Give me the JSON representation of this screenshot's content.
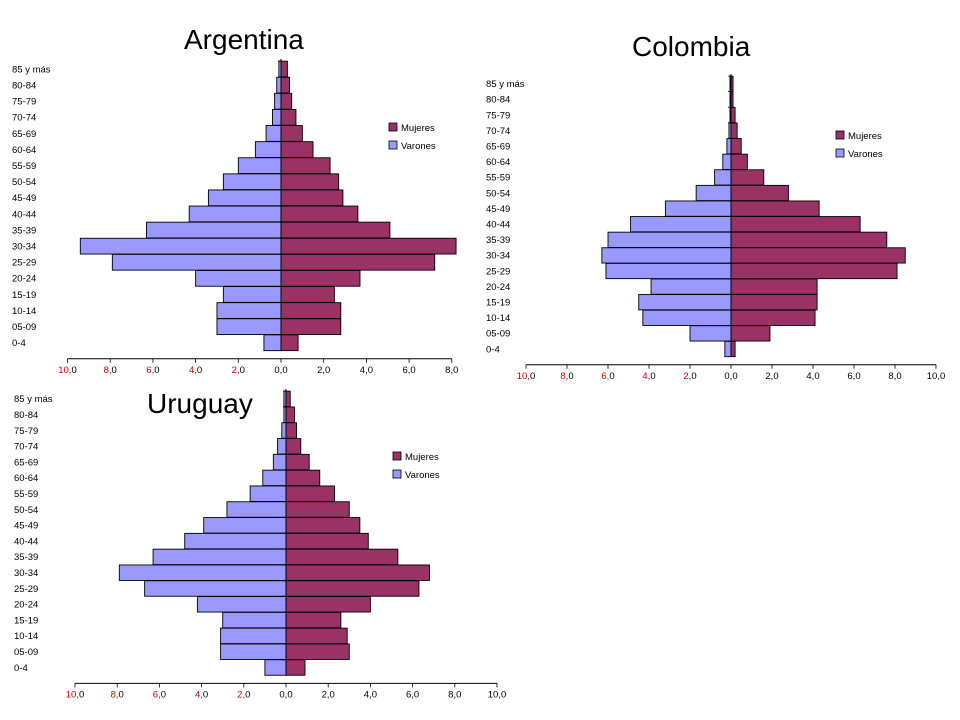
{
  "chart_data": [
    {
      "type": "bar",
      "orientation": "horizontal-pyramid",
      "title": "Argentina",
      "categories": [
        "0-4",
        "05-09",
        "10-14",
        "15-19",
        "20-24",
        "25-29",
        "30-34",
        "35-39",
        "40-44",
        "45-49",
        "50-54",
        "55-59",
        "60-64",
        "65-69",
        "70-74",
        "75-79",
        "80-84",
        "85 y más"
      ],
      "series": [
        {
          "name": "Mujeres",
          "color": "#993366",
          "side": "right",
          "values": [
            0.8,
            2.8,
            2.8,
            2.5,
            3.7,
            7.2,
            8.2,
            5.1,
            3.6,
            2.9,
            2.7,
            2.3,
            1.5,
            1.0,
            0.7,
            0.5,
            0.4,
            0.3
          ]
        },
        {
          "name": "Varones",
          "color": "#9999ff",
          "side": "left",
          "values": [
            0.8,
            3.0,
            3.0,
            2.7,
            4.0,
            7.9,
            9.4,
            6.3,
            4.3,
            3.4,
            2.7,
            2.0,
            1.2,
            0.7,
            0.4,
            0.3,
            0.2,
            0.1
          ]
        }
      ],
      "xticks": [
        "10,0",
        "8,0",
        "6,0",
        "4,0",
        "2,0",
        "0,0",
        "2,0",
        "4,0",
        "6,0",
        "8,0"
      ],
      "xlim": [
        -10,
        8
      ],
      "legend": "right",
      "grid": false
    },
    {
      "type": "bar",
      "orientation": "horizontal-pyramid",
      "title": "Colombia",
      "categories": [
        "0-4",
        "05-09",
        "10-14",
        "15-19",
        "20-24",
        "25-29",
        "30-34",
        "35-39",
        "40-44",
        "45-49",
        "50-54",
        "55-59",
        "60-64",
        "65-69",
        "70-74",
        "75-79",
        "80-84",
        "85 y más"
      ],
      "series": [
        {
          "name": "Mujeres",
          "color": "#993366",
          "side": "right",
          "values": [
            0.2,
            1.9,
            4.1,
            4.2,
            4.2,
            8.1,
            8.5,
            7.6,
            6.3,
            4.3,
            2.8,
            1.6,
            0.8,
            0.5,
            0.3,
            0.2,
            0.1,
            0.1
          ]
        },
        {
          "name": "Varones",
          "color": "#9999ff",
          "side": "left",
          "values": [
            0.3,
            2.0,
            4.3,
            4.5,
            3.9,
            6.1,
            6.3,
            6.0,
            4.9,
            3.2,
            1.7,
            0.8,
            0.4,
            0.2,
            0.1,
            0.05,
            0.05,
            0.05
          ]
        }
      ],
      "xticks": [
        "10,0",
        "8,0",
        "6,0",
        "4,0",
        "2,0",
        "0,0",
        "2,0",
        "4,0",
        "6,0",
        "8,0",
        "10,0"
      ],
      "xlim": [
        -10,
        10
      ],
      "legend": "right",
      "grid": false
    },
    {
      "type": "bar",
      "orientation": "horizontal-pyramid",
      "title": "Uruguay",
      "categories": [
        "0-4",
        "05-09",
        "10-14",
        "15-19",
        "20-24",
        "25-29",
        "30-34",
        "35-39",
        "40-44",
        "45-49",
        "50-54",
        "55-59",
        "60-64",
        "65-69",
        "70-74",
        "75-79",
        "80-84",
        "85 y más"
      ],
      "series": [
        {
          "name": "Mujeres",
          "color": "#993366",
          "side": "right",
          "values": [
            0.9,
            3.0,
            2.9,
            2.6,
            4.0,
            6.3,
            6.8,
            5.3,
            3.9,
            3.5,
            3.0,
            2.3,
            1.6,
            1.1,
            0.7,
            0.5,
            0.4,
            0.2
          ]
        },
        {
          "name": "Varones",
          "color": "#9999ff",
          "side": "left",
          "values": [
            1.0,
            3.1,
            3.1,
            3.0,
            4.2,
            6.7,
            7.9,
            6.3,
            4.8,
            3.9,
            2.8,
            1.7,
            1.1,
            0.6,
            0.4,
            0.2,
            0.1,
            0.1
          ]
        }
      ],
      "xticks": [
        "10,0",
        "8,0",
        "6,0",
        "4,0",
        "2,0",
        "0,0",
        "2,0",
        "4,0",
        "6,0",
        "8,0",
        "10,0"
      ],
      "xlim": [
        -10,
        10
      ],
      "legend": "right",
      "grid": false
    }
  ]
}
